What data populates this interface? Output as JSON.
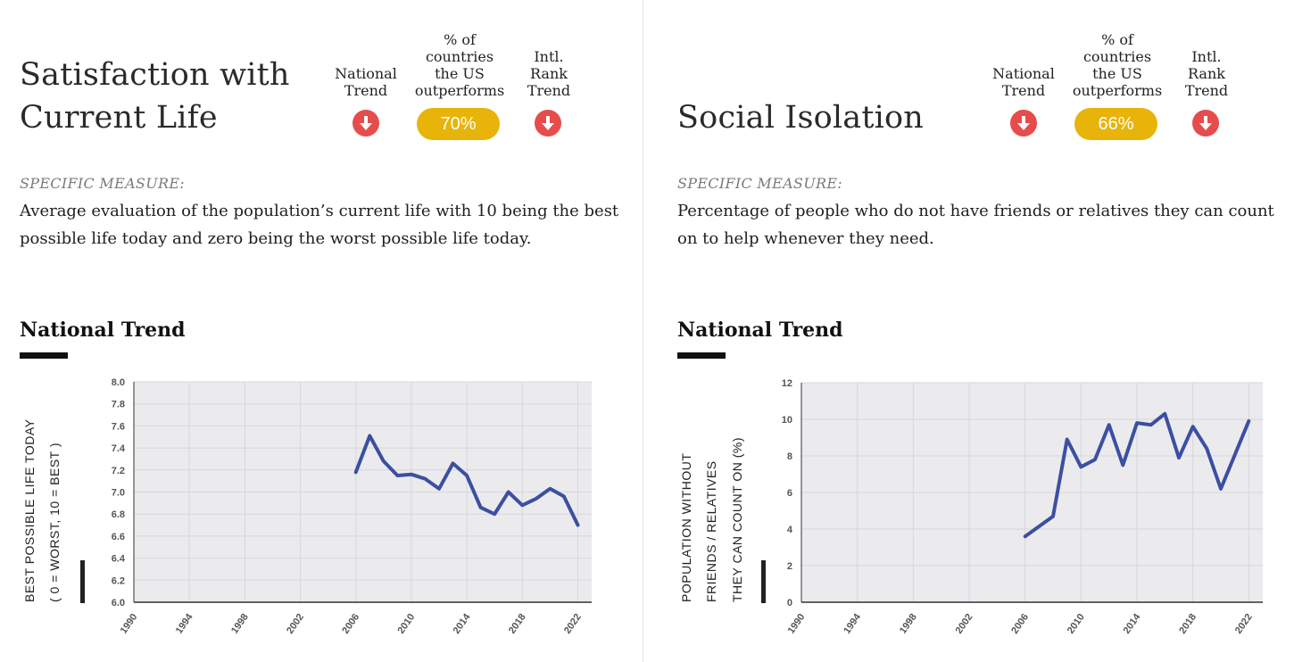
{
  "colors": {
    "down_indicator": "#e74c4c",
    "pill": "#e8b40a",
    "line": "#3c4fa0",
    "plot_bg": "#ebebee",
    "grid": "#d7d7dc"
  },
  "header_labels": {
    "national": [
      "National",
      "Trend"
    ],
    "pct": [
      "% of",
      "countries",
      "the US",
      "outperforms"
    ],
    "intl": [
      "Intl.",
      "Rank",
      "Trend"
    ]
  },
  "panels": [
    {
      "title_lines": [
        "Satisfaction with",
        "Current Life"
      ],
      "national_trend_icon": "arrow-down-icon",
      "pct_outperforms": "70%",
      "intl_rank_icon": "arrow-down-icon",
      "measure_label": "SPECIFIC MEASURE:",
      "measure_text": "Average evaluation of the population’s current life with 10 being the best possible life today and zero being the worst possible life today.",
      "section_title": "National Trend"
    },
    {
      "title_lines": [
        "Social Isolation"
      ],
      "national_trend_icon": "arrow-down-icon",
      "pct_outperforms": "66%",
      "intl_rank_icon": "arrow-down-icon",
      "measure_label": "SPECIFIC MEASURE:",
      "measure_text": "Percentage of people who do not have friends or relatives they can count on to help whenever they need.",
      "section_title": "National Trend"
    }
  ],
  "chart_data": [
    {
      "type": "line",
      "title": "National Trend",
      "ylabel_lines": [
        "BEST POSSIBLE LIFE TODAY",
        "( 0 = WORST, 10 = BEST )"
      ],
      "xlabel": "",
      "ylim": [
        6.0,
        8.0
      ],
      "xlim": [
        1990,
        2023
      ],
      "yticks": [
        "6.0",
        "6.2",
        "6.4",
        "6.6",
        "6.8",
        "7.0",
        "7.2",
        "7.4",
        "7.6",
        "7.8",
        "8.0"
      ],
      "xticks": [
        "1990",
        "1994",
        "1998",
        "2002",
        "2006",
        "2010",
        "2014",
        "2018",
        "2022"
      ],
      "grid": true,
      "x": [
        2006,
        2007,
        2008,
        2009,
        2010,
        2011,
        2012,
        2013,
        2014,
        2015,
        2016,
        2017,
        2018,
        2019,
        2020,
        2021,
        2022
      ],
      "y": [
        7.18,
        7.51,
        7.28,
        7.15,
        7.16,
        7.12,
        7.03,
        7.26,
        7.15,
        6.86,
        6.8,
        7.0,
        6.88,
        6.94,
        7.03,
        6.96,
        6.7
      ]
    },
    {
      "type": "line",
      "title": "National Trend",
      "ylabel_lines": [
        "POPULATION WITHOUT",
        "FRIENDS / RELATIVES",
        "THEY CAN COUNT ON (%)"
      ],
      "xlabel": "",
      "ylim": [
        0,
        12
      ],
      "xlim": [
        1990,
        2023
      ],
      "yticks": [
        "0",
        "2",
        "4",
        "6",
        "8",
        "10",
        "12"
      ],
      "xticks": [
        "1990",
        "1994",
        "1998",
        "2002",
        "2006",
        "2010",
        "2014",
        "2018",
        "2022"
      ],
      "grid": true,
      "x": [
        2006,
        2008,
        2009,
        2010,
        2011,
        2012,
        2013,
        2014,
        2015,
        2016,
        2017,
        2018,
        2019,
        2020,
        2022
      ],
      "y": [
        3.6,
        4.7,
        8.9,
        7.4,
        7.8,
        9.7,
        7.5,
        9.8,
        9.7,
        10.3,
        7.9,
        9.6,
        8.4,
        6.2,
        9.9
      ]
    }
  ]
}
